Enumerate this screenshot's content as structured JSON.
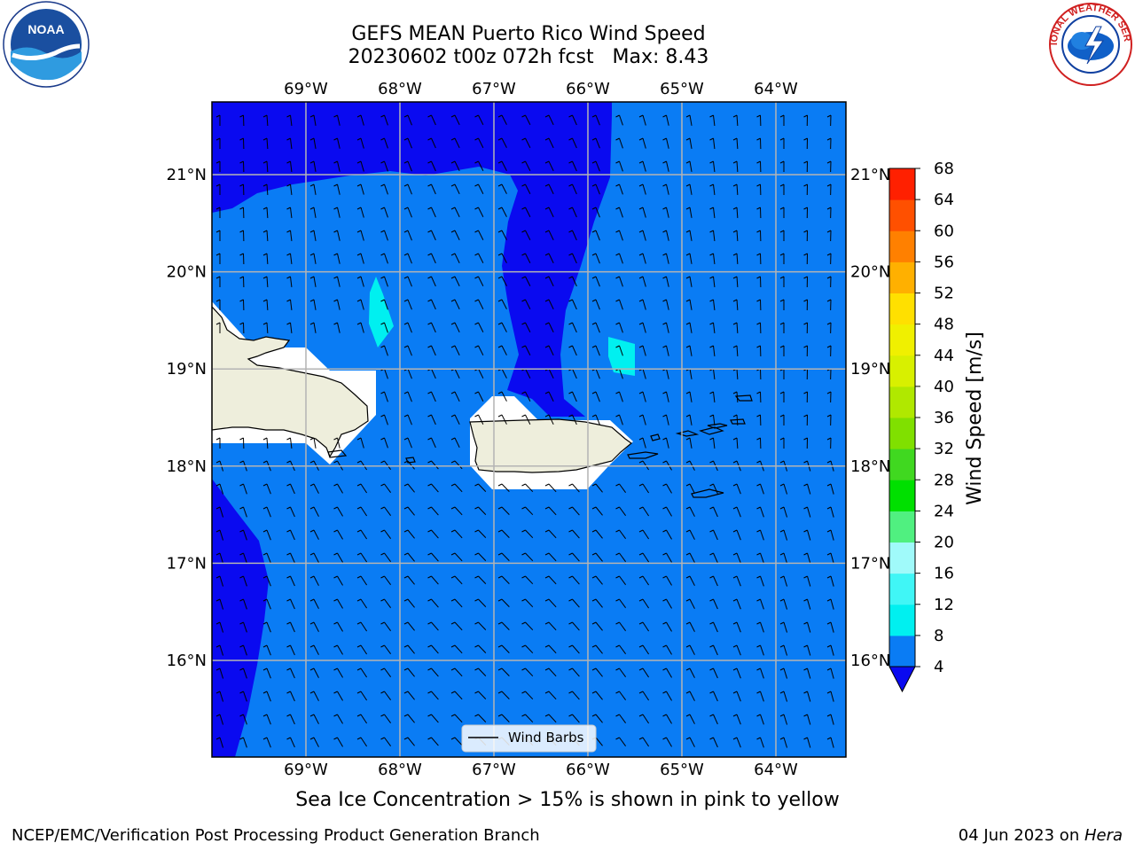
{
  "title": {
    "line1": "GEFS MEAN Puerto Rico Wind Speed",
    "line2": "20230602 t00z 072h fcst   Max: 8.43"
  },
  "map": {
    "lon_labels": [
      "69°W",
      "68°W",
      "67°W",
      "66°W",
      "65°W",
      "64°W"
    ],
    "lat_labels": [
      "21°N",
      "20°N",
      "19°N",
      "18°N",
      "17°N",
      "16°N"
    ],
    "legend_label": "Wind Barbs",
    "colors": {
      "ocean_light": "#0a7cf4",
      "ocean_dark": "#0a0af0",
      "cyan": "#00f0f0",
      "land": "#eeeedc",
      "grid": "#b4b4b4"
    }
  },
  "colorbar": {
    "label": "Wind Speed [m/s]",
    "ticks": [
      "4",
      "8",
      "12",
      "16",
      "20",
      "24",
      "28",
      "32",
      "36",
      "40",
      "44",
      "48",
      "52",
      "56",
      "60",
      "64",
      "68"
    ],
    "colors": [
      "#0a7cf4",
      "#00f0f0",
      "#40f6f6",
      "#a0fafa",
      "#50f080",
      "#00e000",
      "#40d820",
      "#80e000",
      "#b0e800",
      "#d8f000",
      "#f0f000",
      "#ffe000",
      "#ffb000",
      "#ff8000",
      "#ff5000",
      "#ff2000"
    ],
    "extend_color": "#0a0af0"
  },
  "caption": "Sea Ice Concentration > 15% is shown in pink to yellow",
  "footer": {
    "left": "NCEP/EMC/Verification Post Processing Product Generation Branch",
    "right_prefix": "04 Jun 2023 on ",
    "right_host": "Hera"
  },
  "logos": {
    "noaa_text": "NOAA",
    "nws_text": "NATIONAL WEATHER SERVICE"
  }
}
